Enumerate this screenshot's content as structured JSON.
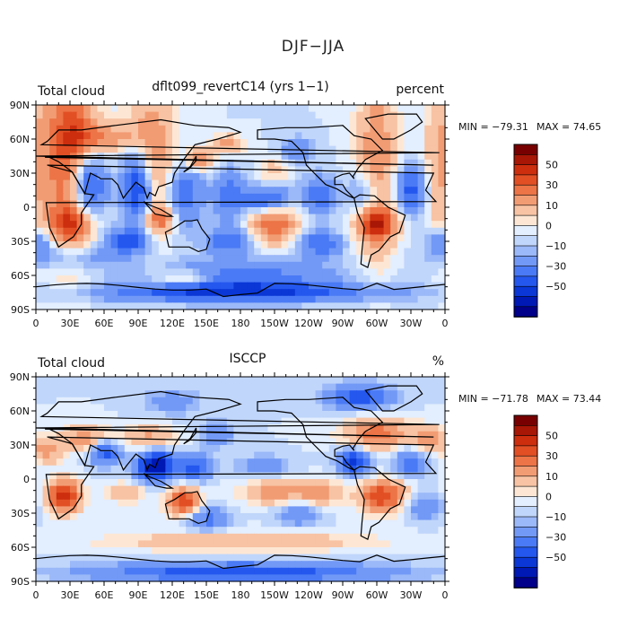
{
  "figure": {
    "title": "DJF−JJA"
  },
  "chart_data": [
    {
      "type": "heatmap",
      "variable_label": "Total cloud",
      "dataset_label": "dflt099_revertC14 (yrs 1−1)",
      "units_label": "percent",
      "min_label": "MIN = −79.31",
      "max_label": "MAX =  74.65",
      "min": -79.31,
      "max": 74.65,
      "x_ticks": [
        "0",
        "30E",
        "60E",
        "90E",
        "120E",
        "150E",
        "180",
        "150W",
        "120W",
        "90W",
        "60W",
        "30W",
        "0"
      ],
      "y_ticks": [
        "90N",
        "60N",
        "30N",
        "0",
        "30S",
        "60S",
        "90S"
      ],
      "xlim": [
        0,
        360
      ],
      "ylim": [
        -90,
        90
      ],
      "colorbar_labels": [
        "50",
        "30",
        "10",
        "0",
        "−10",
        "−30",
        "−50"
      ],
      "colorbar_levels": [
        -70,
        -60,
        -50,
        -40,
        -30,
        -20,
        -10,
        -5,
        0,
        5,
        10,
        20,
        30,
        40,
        50,
        60,
        70
      ]
    },
    {
      "type": "heatmap",
      "variable_label": "Total cloud",
      "dataset_label": "ISCCP",
      "units_label": "%",
      "min_label": "MIN = −71.78",
      "max_label": "MAX =  73.44",
      "min": -71.78,
      "max": 73.44,
      "x_ticks": [
        "0",
        "30E",
        "60E",
        "90E",
        "120E",
        "150E",
        "180",
        "150W",
        "120W",
        "90W",
        "60W",
        "30W",
        "0"
      ],
      "y_ticks": [
        "90N",
        "60N",
        "30N",
        "0",
        "30S",
        "60S",
        "90S"
      ],
      "xlim": [
        0,
        360
      ],
      "ylim": [
        -90,
        90
      ],
      "colorbar_labels": [
        "50",
        "30",
        "10",
        "0",
        "−10",
        "−30",
        "−50"
      ],
      "colorbar_levels": [
        -70,
        -60,
        -50,
        -40,
        -30,
        -20,
        -10,
        -5,
        0,
        5,
        10,
        20,
        30,
        40,
        50,
        60,
        70
      ]
    }
  ],
  "colors": {
    "palette": [
      "#00008a",
      "#0018b4",
      "#0a37d6",
      "#2457ee",
      "#4a7af5",
      "#7299f6",
      "#9bb8f8",
      "#c0d6fb",
      "#e3eefe",
      "#fde7d4",
      "#f7c3a4",
      "#f29c74",
      "#ec7446",
      "#e24f25",
      "#cc2e0e",
      "#a81605",
      "#780000"
    ]
  }
}
